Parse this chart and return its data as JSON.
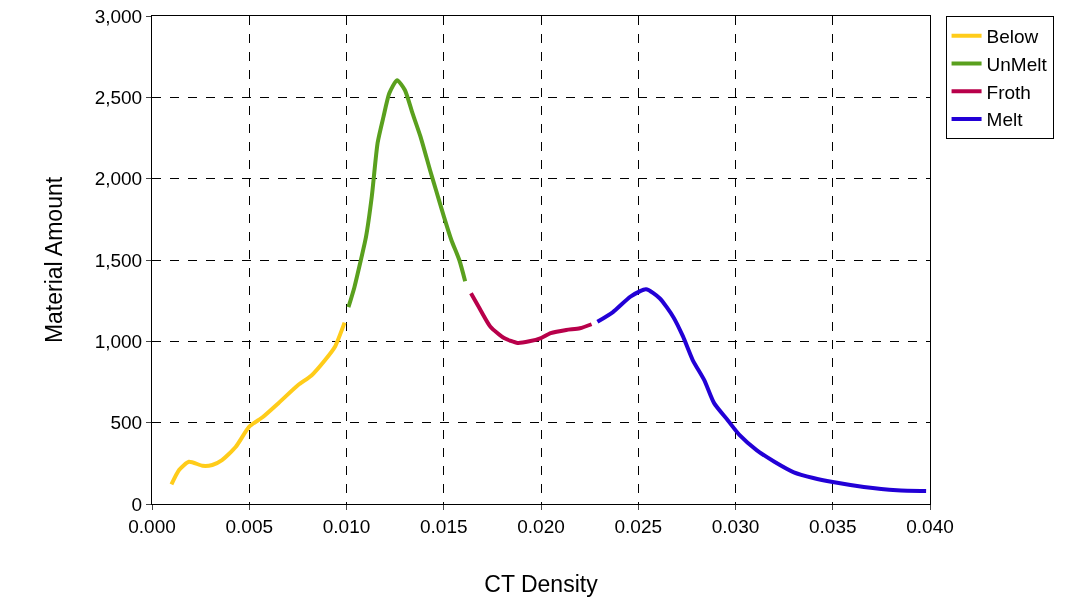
{
  "chart_data": {
    "type": "line",
    "xlabel": "CT Density",
    "ylabel": "Material Amount",
    "xlim": [
      0,
      0.04
    ],
    "xticks": [
      {
        "value": 0,
        "label": "0.000"
      },
      0.005,
      {
        "value": 0.01,
        "label": "0.010"
      },
      0.015,
      {
        "value": 0.02,
        "label": "0.020"
      },
      0.025,
      {
        "value": 0.03,
        "label": "0.030"
      },
      0.035,
      {
        "value": 0.04,
        "label": "0.040"
      }
    ],
    "ylim": [
      0,
      3000
    ],
    "yticks": [
      0,
      500,
      {
        "value": 1000,
        "label": "1,000"
      },
      {
        "value": 1500,
        "label": "1,500"
      },
      {
        "value": 2000,
        "label": "2,000"
      },
      {
        "value": 2500,
        "label": "2,500"
      },
      {
        "value": 3000,
        "label": "3,000"
      }
    ],
    "grid": true,
    "legend": "right",
    "line_style": "solid",
    "marker": "none",
    "series": [
      {
        "name": "Below",
        "color": "#ffcc1a",
        "x": [
          0.001,
          0.0014,
          0.0019,
          0.0026,
          0.0031,
          0.0036,
          0.0043,
          0.005,
          0.0057,
          0.0065,
          0.0075,
          0.0082,
          0.0089,
          0.0094,
          0.0099
        ],
        "values": [
          120,
          210,
          260,
          235,
          240,
          270,
          350,
          475,
          535,
          620,
          730,
          790,
          885,
          965,
          1115
        ]
      },
      {
        "name": "UnMelt",
        "color": "#5aa01e",
        "x": [
          0.0101,
          0.0104,
          0.0107,
          0.011,
          0.0113,
          0.0116,
          0.0119,
          0.0122,
          0.0126,
          0.013,
          0.0134,
          0.0138,
          0.0143,
          0.0146,
          0.015,
          0.0154,
          0.0158,
          0.0161
        ],
        "values": [
          1210,
          1330,
          1480,
          1640,
          1890,
          2220,
          2380,
          2525,
          2605,
          2545,
          2400,
          2260,
          2050,
          1930,
          1770,
          1620,
          1500,
          1370
        ]
      },
      {
        "name": "Froth",
        "color": "#b8004a",
        "x": [
          0.0164,
          0.0169,
          0.0174,
          0.0181,
          0.0188,
          0.0194,
          0.02,
          0.0205,
          0.0213,
          0.022,
          0.0226
        ],
        "values": [
          1295,
          1190,
          1090,
          1020,
          990,
          1000,
          1020,
          1050,
          1070,
          1080,
          1105
        ]
      },
      {
        "name": "Melt",
        "color": "#2200d6",
        "x": [
          0.0229,
          0.0237,
          0.0246,
          0.0254,
          0.0261,
          0.0268,
          0.0273,
          0.0278,
          0.0284,
          0.0289,
          0.0296,
          0.0302,
          0.0311,
          0.032,
          0.033,
          0.034,
          0.035,
          0.0366,
          0.0383,
          0.0398
        ],
        "values": [
          1120,
          1180,
          1275,
          1320,
          1265,
          1150,
          1030,
          885,
          760,
          620,
          515,
          425,
          330,
          260,
          195,
          160,
          135,
          105,
          85,
          80
        ]
      }
    ]
  }
}
